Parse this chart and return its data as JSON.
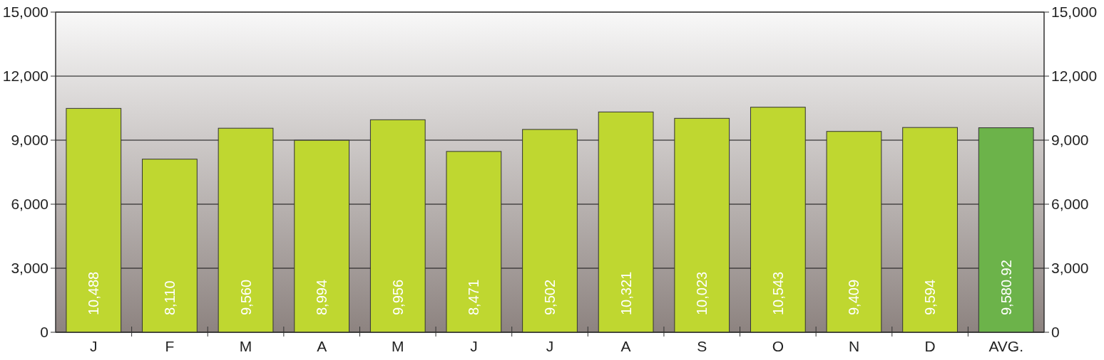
{
  "chart_data": {
    "type": "bar",
    "categories": [
      "J",
      "F",
      "M",
      "A",
      "M",
      "J",
      "J",
      "A",
      "S",
      "O",
      "N",
      "D",
      "AVG."
    ],
    "values": [
      10488,
      8110,
      9560,
      8994,
      9956,
      8471,
      9502,
      10321,
      10023,
      10543,
      9409,
      9594,
      9580.92
    ],
    "colors": [
      "#bfd730",
      "#bfd730",
      "#bfd730",
      "#bfd730",
      "#bfd730",
      "#bfd730",
      "#bfd730",
      "#bfd730",
      "#bfd730",
      "#bfd730",
      "#bfd730",
      "#bfd730",
      "#6cb34a"
    ],
    "ylim": [
      0,
      15000
    ],
    "yticks": [
      {
        "value": 0,
        "label": "0"
      },
      {
        "value": 3000,
        "label": "3,000"
      },
      {
        "value": 6000,
        "label": "6,000"
      },
      {
        "value": 9000,
        "label": "9,000"
      },
      {
        "value": 12000,
        "label": "12,000"
      },
      {
        "value": 15000,
        "label": "15,000"
      }
    ],
    "y2lim": [
      0,
      15000
    ],
    "y2ticks": [
      {
        "value": 0,
        "label": "0"
      },
      {
        "value": 3000,
        "label": "3,000"
      },
      {
        "value": 6000,
        "label": "6,000"
      },
      {
        "value": 9000,
        "label": "9,000"
      },
      {
        "value": 12000,
        "label": "12,000"
      },
      {
        "value": 15000,
        "label": "15,000"
      }
    ],
    "value_labels": [
      "10,488",
      "8,110",
      "9,560",
      "8,994",
      "9,956",
      "8,471",
      "9,502",
      "10,321",
      "10,023",
      "10,543",
      "9,409",
      "9,594",
      "9,580.92"
    ],
    "grid": "y"
  }
}
